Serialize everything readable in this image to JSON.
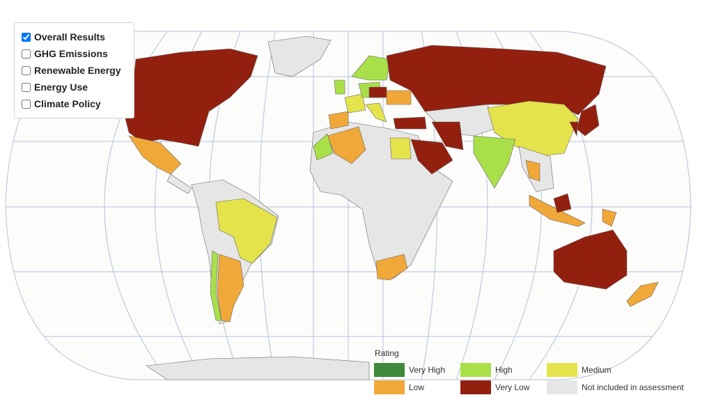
{
  "layer_options": [
    {
      "label": "Overall Results",
      "checked": true
    },
    {
      "label": "GHG Emissions",
      "checked": false
    },
    {
      "label": "Renewable Energy",
      "checked": false
    },
    {
      "label": "Energy Use",
      "checked": false
    },
    {
      "label": "Climate Policy",
      "checked": false
    }
  ],
  "legend": {
    "title": "Rating",
    "items": [
      {
        "label": "Very High",
        "color": "#3f8a3c"
      },
      {
        "label": "High",
        "color": "#a9e04a"
      },
      {
        "label": "Medium",
        "color": "#e4e34b"
      },
      {
        "label": "Low",
        "color": "#f0a838"
      },
      {
        "label": "Very Low",
        "color": "#93200f"
      },
      {
        "label": "Not included in assessment",
        "color": "#e6e6e6"
      }
    ]
  }
}
